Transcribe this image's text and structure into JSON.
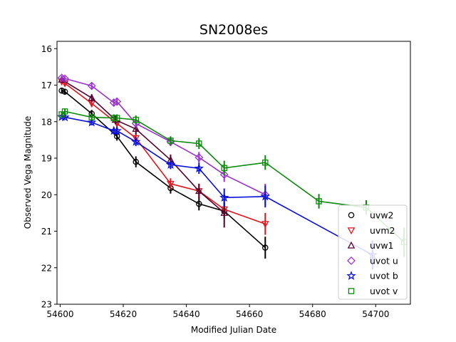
{
  "chart_data": {
    "type": "scatter",
    "title": "SN2008es",
    "xlabel": "Modified Julian Date",
    "ylabel": "Observed Vega Magnitude",
    "xlim": [
      54599,
      54711
    ],
    "ylim": [
      23,
      15.8
    ],
    "y_inverted": true,
    "xticks": [
      54600,
      54620,
      54640,
      54660,
      54680,
      54700
    ],
    "yticks": [
      16,
      17,
      18,
      19,
      20,
      21,
      22,
      23
    ],
    "grid": false,
    "legend_position": "lower-right",
    "series": [
      {
        "name": "uvw2",
        "color": "#000000",
        "marker": "circle",
        "x": [
          54600.5,
          54601.5,
          54610,
          54618,
          54624,
          54635,
          54644,
          54652,
          54665
        ],
        "y": [
          17.15,
          17.18,
          17.78,
          18.4,
          19.1,
          19.82,
          20.25,
          20.45,
          21.45
        ],
        "err": [
          0.08,
          0.08,
          0.1,
          0.12,
          0.15,
          0.15,
          0.18,
          0.2,
          0.3
        ]
      },
      {
        "name": "uvm2",
        "color": "#e0141e",
        "marker": "triangle-down",
        "x": [
          54600.5,
          54601.5,
          54610,
          54618,
          54624,
          54635,
          54644,
          54652,
          54665
        ],
        "y": [
          16.9,
          16.95,
          17.5,
          18.05,
          18.45,
          19.7,
          19.9,
          20.4,
          20.8
        ],
        "err": [
          0.08,
          0.08,
          0.1,
          0.12,
          0.15,
          0.15,
          0.2,
          0.2,
          0.3
        ]
      },
      {
        "name": "uvw1",
        "color": "#55002e",
        "marker": "triangle-up",
        "x": [
          54600.5,
          54610,
          54617.5,
          54624,
          54635,
          54644,
          54652
        ],
        "y": [
          16.85,
          17.35,
          17.95,
          18.2,
          19.05,
          19.9,
          20.5
        ],
        "err": [
          0.08,
          0.1,
          0.12,
          0.15,
          0.15,
          0.2,
          0.4
        ]
      },
      {
        "name": "uvot u",
        "color": "#9a32cd",
        "marker": "diamond",
        "x": [
          54600.5,
          54601.5,
          54610,
          54617,
          54618,
          54624,
          54635,
          54644,
          54652,
          54665
        ],
        "y": [
          16.8,
          16.82,
          17.02,
          17.48,
          17.45,
          18.05,
          18.55,
          18.98,
          19.45,
          20.0
        ],
        "err": [
          0.06,
          0.06,
          0.08,
          0.1,
          0.1,
          0.12,
          0.12,
          0.15,
          0.2,
          0.3
        ]
      },
      {
        "name": "uvot b",
        "color": "#0a10d8",
        "marker": "star",
        "x": [
          54600.5,
          54601.5,
          54610,
          54617,
          54618,
          54624,
          54635,
          54644,
          54652,
          54665,
          54699
        ],
        "y": [
          17.87,
          17.88,
          18.02,
          18.25,
          18.25,
          18.55,
          19.18,
          19.28,
          20.08,
          20.05,
          21.65
        ],
        "err": [
          0.06,
          0.06,
          0.08,
          0.1,
          0.1,
          0.12,
          0.12,
          0.15,
          0.25,
          0.3,
          0.4
        ]
      },
      {
        "name": "uvot v",
        "color": "#0a8a0a",
        "marker": "square",
        "x": [
          54600.5,
          54601.5,
          54610,
          54617,
          54618,
          54624,
          54635,
          54644,
          54652,
          54665,
          54682,
          54697,
          54709
        ],
        "y": [
          17.8,
          17.72,
          17.88,
          17.9,
          17.9,
          17.95,
          18.52,
          18.6,
          19.27,
          19.12,
          20.18,
          20.35,
          21.3
        ],
        "err": [
          0.06,
          0.06,
          0.08,
          0.1,
          0.1,
          0.12,
          0.12,
          0.15,
          0.2,
          0.2,
          0.2,
          0.2,
          0.4
        ]
      }
    ]
  }
}
